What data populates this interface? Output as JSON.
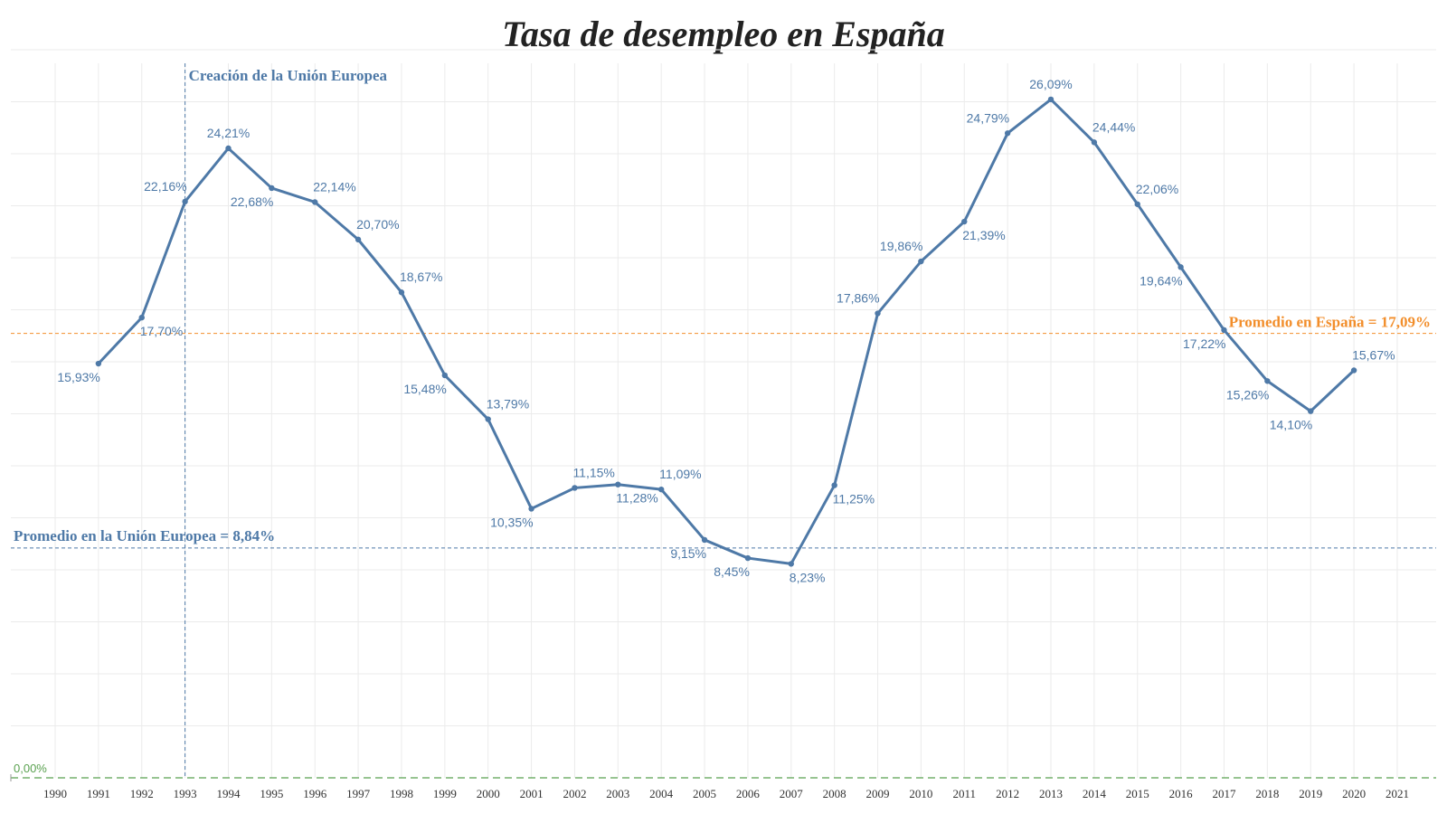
{
  "chart_data": {
    "type": "line",
    "title": "Tasa de desempleo en España",
    "xlabel": "",
    "ylabel": "",
    "categories": [
      "1990",
      "1991",
      "1992",
      "1993",
      "1994",
      "1995",
      "1996",
      "1997",
      "1998",
      "1999",
      "2000",
      "2001",
      "2002",
      "2003",
      "2004",
      "2005",
      "2006",
      "2007",
      "2008",
      "2009",
      "2010",
      "2011",
      "2012",
      "2013",
      "2014",
      "2015",
      "2016",
      "2017",
      "2018",
      "2019",
      "2020",
      "2021"
    ],
    "x": [
      1991,
      1992,
      1993,
      1994,
      1995,
      1996,
      1997,
      1998,
      1999,
      2000,
      2001,
      2002,
      2003,
      2004,
      2005,
      2006,
      2007,
      2008,
      2009,
      2010,
      2011,
      2012,
      2013,
      2014,
      2015,
      2016,
      2017,
      2018,
      2019,
      2020
    ],
    "values": [
      15.93,
      17.7,
      22.16,
      24.21,
      22.68,
      22.14,
      20.7,
      18.67,
      15.48,
      13.79,
      10.35,
      11.15,
      11.28,
      11.09,
      9.15,
      8.45,
      8.23,
      11.25,
      17.86,
      19.86,
      21.39,
      24.79,
      26.09,
      24.44,
      22.06,
      19.64,
      17.22,
      15.26,
      14.1,
      15.67
    ],
    "labels": [
      "15,93%",
      "17,70%",
      "22,16%",
      "24,21%",
      "22,68%",
      "22,14%",
      "20,70%",
      "18,67%",
      "15,48%",
      "13,79%",
      "10,35%",
      "11,15%",
      "11,28%",
      "11,09%",
      "9,15%",
      "8,45%",
      "8,23%",
      "11,25%",
      "17,86%",
      "19,86%",
      "21,39%",
      "24,79%",
      "26,09%",
      "24,44%",
      "22,06%",
      "19,64%",
      "17,22%",
      "15,26%",
      "14,10%",
      "15,67%"
    ],
    "ylim": [
      0,
      29
    ],
    "grid": true,
    "reference_lines": {
      "spain_avg": {
        "value": 17.09,
        "label": "Promedio en España = 17,09%",
        "color": "#f28e2b"
      },
      "eu_avg": {
        "value": 8.84,
        "label": "Promedio en la Unión Europea = 8,84%",
        "color": "#4e79a7"
      },
      "zero": {
        "value": 0,
        "label": "0,00%",
        "color": "#59a14f"
      },
      "eu_creation": {
        "year": 1993,
        "label": "Creación de la Unión Europea",
        "color": "#4e79a7"
      }
    },
    "colors": {
      "line": "#4e79a7"
    }
  }
}
